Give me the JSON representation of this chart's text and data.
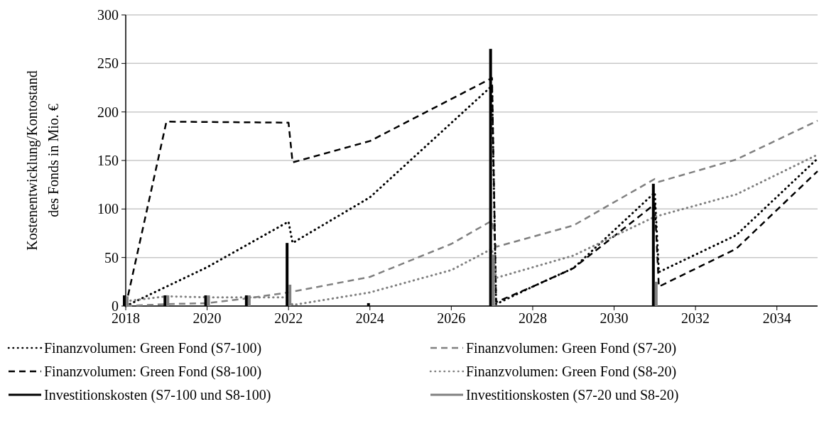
{
  "chart_data": {
    "type": "line",
    "ylabel": "Kostenentwicklung/Kontostand des Fonds in Mio. €",
    "xlim": [
      2018,
      2035
    ],
    "xticks": [
      2018,
      2020,
      2022,
      2024,
      2026,
      2028,
      2030,
      2032,
      2034
    ],
    "ylim": [
      0,
      300
    ],
    "yticks": [
      0,
      50,
      100,
      150,
      200,
      250,
      300
    ],
    "grid": "y",
    "legend": "bottom",
    "marker": "none",
    "series": [
      {
        "name": "Finanzvolumen: Green Fond (S7-100)",
        "color": "#000000",
        "line_style": "dotted",
        "x": [
          2018,
          2019,
          2020,
          2022,
          2022.1,
          2024,
          2027,
          2027.1,
          2028,
          2029,
          2031,
          2031.1,
          2033,
          2035
        ],
        "values": [
          0,
          20,
          40,
          87,
          65,
          112,
          227,
          2,
          20,
          39,
          117,
          35,
          73,
          152
        ]
      },
      {
        "name": "Finanzvolumen: Green Fond (S7-20)",
        "color": "#808080",
        "line_style": "dashed",
        "x": [
          2018,
          2019,
          2020,
          2021,
          2022,
          2024,
          2026,
          2027,
          2027.1,
          2029,
          2031,
          2031.1,
          2033,
          2035
        ],
        "values": [
          0,
          2,
          3,
          8,
          14,
          30,
          64,
          88,
          61,
          83,
          131,
          128,
          151,
          191
        ]
      },
      {
        "name": "Finanzvolumen: Green Fond (S8-100)",
        "color": "#000000",
        "line_style": "dashed",
        "x": [
          2018,
          2019,
          2022,
          2022.1,
          2024,
          2027,
          2027.1,
          2028,
          2029,
          2031,
          2031.1,
          2033,
          2035
        ],
        "values": [
          0,
          190,
          189,
          148,
          170,
          235,
          4,
          20,
          39,
          105,
          20,
          59,
          139
        ]
      },
      {
        "name": "Finanzvolumen: Green Fond (S8-20)",
        "color": "#808080",
        "line_style": "dotted",
        "x": [
          2018,
          2019,
          2020,
          2021,
          2022,
          2022.1,
          2024,
          2026,
          2027,
          2027.1,
          2029,
          2031,
          2033,
          2035
        ],
        "values": [
          5,
          10,
          9,
          9,
          9,
          1,
          14,
          37,
          59,
          29,
          52,
          92,
          115,
          156
        ]
      },
      {
        "name": "Investitionskosten (S7-100 und S8-100)",
        "type": "bar",
        "color": "#000000",
        "x": [
          2018,
          2019,
          2020,
          2021,
          2022,
          2024,
          2027,
          2031
        ],
        "values": [
          11,
          11,
          11,
          11,
          65,
          3,
          265,
          126
        ]
      },
      {
        "name": "Investitionskosten (S7-20 und S8-20)",
        "type": "bar",
        "color": "#808080",
        "x": [
          2018,
          2019,
          2020,
          2021,
          2022,
          2027,
          2031
        ],
        "values": [
          10,
          11,
          11,
          11,
          22,
          53,
          25
        ]
      }
    ]
  }
}
